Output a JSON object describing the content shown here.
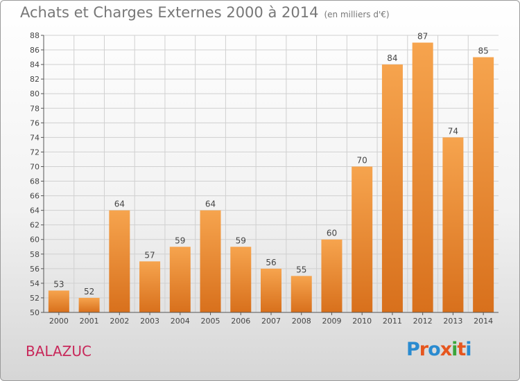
{
  "header": {
    "title": "Achats et Charges Externes 2000 à 2014",
    "unit_note": "(en milliers d'€)"
  },
  "footer": {
    "commune": "BALAZUC",
    "logo_text": "Proxiti"
  },
  "colors": {
    "bar_top": "#f6a44e",
    "bar_bottom": "#d8701c",
    "grid": "#d0d0d0",
    "commune_text": "#c8285a"
  },
  "chart_data": {
    "type": "bar",
    "title": "Achats et Charges Externes 2000 à 2014",
    "subtitle": "(en milliers d'€)",
    "xlabel": "",
    "ylabel": "",
    "categories": [
      "2000",
      "2001",
      "2002",
      "2003",
      "2004",
      "2005",
      "2006",
      "2007",
      "2008",
      "2009",
      "2010",
      "2011",
      "2012",
      "2013",
      "2014"
    ],
    "values": [
      53,
      52,
      64,
      57,
      59,
      64,
      59,
      56,
      55,
      60,
      70,
      84,
      87,
      74,
      85
    ],
    "ylim": [
      50,
      88
    ],
    "yticks": [
      50,
      52,
      54,
      56,
      58,
      60,
      62,
      64,
      66,
      68,
      70,
      72,
      74,
      76,
      78,
      80,
      82,
      84,
      86,
      88
    ],
    "grid": true,
    "legend": "none"
  }
}
